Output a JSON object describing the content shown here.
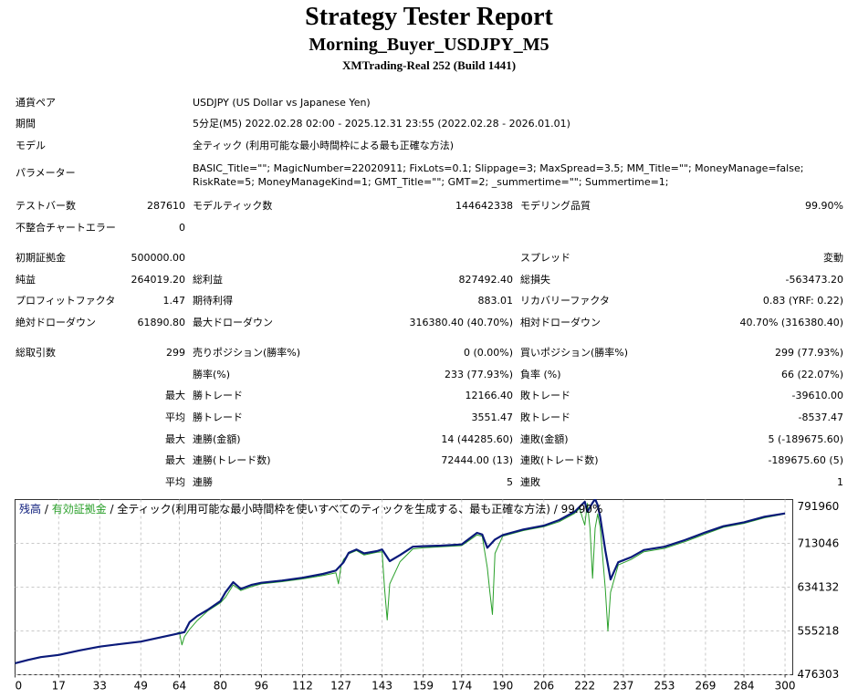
{
  "header": {
    "title": "Strategy Tester Report",
    "subtitle": "Morning_Buyer_USDJPY_M5",
    "server": "XMTrading-Real 252 (Build 1441)"
  },
  "info": {
    "symbol_label": "通貨ペア",
    "symbol_value": "USDJPY (US Dollar vs Japanese Yen)",
    "period_label": "期間",
    "period_value": "5分足(M5) 2022.02.28 02:00 - 2025.12.31 23:55 (2022.02.28 - 2026.01.01)",
    "model_label": "モデル",
    "model_value": "全ティック (利用可能な最小時間枠による最も正確な方法)",
    "params_label": "パラメーター",
    "params_value": "BASIC_Title=\"\"; MagicNumber=22020911; FixLots=0.1; Slippage=3; MaxSpread=3.5; MM_Title=\"\"; MoneyManage=false; RiskRate=5; MoneyManageKind=1; GMT_Title=\"\"; GMT=2; _summertime=\"\"; Summertime=1;"
  },
  "stats": {
    "bars_label": "テストバー数",
    "bars_value": "287610",
    "ticks_label": "モデルティック数",
    "ticks_value": "144642338",
    "quality_label": "モデリング品質",
    "quality_value": "99.90%",
    "mismatch_label": "不整合チャートエラー",
    "mismatch_value": "0",
    "deposit_label": "初期証拠金",
    "deposit_value": "500000.00",
    "spread_label": "スプレッド",
    "spread_value": "変動",
    "net_label": "純益",
    "net_value": "264019.20",
    "gross_profit_label": "総利益",
    "gross_profit_value": "827492.40",
    "gross_loss_label": "総損失",
    "gross_loss_value": "-563473.20",
    "pf_label": "プロフィットファクタ",
    "pf_value": "1.47",
    "expected_label": "期待利得",
    "expected_value": "883.01",
    "recovery_label": "リカバリーファクタ",
    "recovery_value": "0.83 (YRF: 0.22)",
    "abs_dd_label": "絶対ドローダウン",
    "abs_dd_value": "61890.80",
    "max_dd_label": "最大ドローダウン",
    "max_dd_value": "316380.40 (40.70%)",
    "rel_dd_label": "相対ドローダウン",
    "rel_dd_value": "40.70% (316380.40)",
    "trades_label": "総取引数",
    "trades_value": "299",
    "short_label": "売りポジション(勝率%)",
    "short_value": "0 (0.00%)",
    "long_label": "買いポジション(勝率%)",
    "long_value": "299 (77.93%)",
    "win_rate_label": "勝率(%)",
    "win_rate_value": "233 (77.93%)",
    "loss_rate_label": "負率 (%)",
    "loss_rate_value": "66 (22.07%)",
    "max_prefix": "最大",
    "avg_prefix": "平均",
    "largest_win_label": "勝トレード",
    "largest_win_value": "12166.40",
    "largest_loss_label": "敗トレード",
    "largest_loss_value": "-39610.00",
    "avg_win_label": "勝トレード",
    "avg_win_value": "3551.47",
    "avg_loss_label": "敗トレード",
    "avg_loss_value": "-8537.47",
    "max_cons_wins_label": "連勝(金額)",
    "max_cons_wins_value": "14 (44285.60)",
    "max_cons_losses_label": "連敗(金額)",
    "max_cons_losses_value": "5 (-189675.60)",
    "max_cons_profit_label": "連勝(トレード数)",
    "max_cons_profit_value": "72444.00 (13)",
    "max_cons_loss_label": "連敗(トレード数)",
    "max_cons_loss_value": "-189675.60 (5)",
    "avg_cons_wins_label": "連勝",
    "avg_cons_wins_value": "5",
    "avg_cons_losses_label": "連敗",
    "avg_cons_losses_value": "1"
  },
  "chart_legend": {
    "balance": "残高",
    "sep1": " / ",
    "equity": "有効証拠金",
    "sep2": " / ",
    "rest": "全ティック(利用可能な最小時間枠を使いすべてのティックを生成する、最も正確な方法) / 99.90%"
  },
  "colors": {
    "balance": "#0a1a7a",
    "equity": "#2aa02a",
    "grid": "#c8c8c8"
  },
  "chart_data": {
    "type": "line",
    "x_ticks": [
      "0",
      "17",
      "33",
      "49",
      "64",
      "80",
      "96",
      "112",
      "127",
      "143",
      "159",
      "174",
      "190",
      "206",
      "222",
      "237",
      "253",
      "269",
      "284",
      "300"
    ],
    "y_ticks": [
      "791960",
      "713046",
      "634132",
      "555218",
      "476303"
    ],
    "ylim": [
      476303,
      791960
    ],
    "xlim": [
      0,
      303
    ],
    "grid": true,
    "series": [
      {
        "name": "残高",
        "x": [
          0,
          5,
          10,
          17,
          25,
          33,
          40,
          49,
          56,
          62,
          66,
          68,
          71,
          75,
          80,
          82,
          85,
          88,
          92,
          96,
          104,
          112,
          120,
          125,
          128,
          130,
          133,
          136,
          141,
          143,
          146,
          150,
          155,
          159,
          166,
          174,
          180,
          182,
          184,
          187,
          190,
          198,
          206,
          212,
          218,
          220,
          222,
          223,
          225,
          226,
          227,
          228,
          230,
          232,
          235,
          240,
          245,
          253,
          261,
          269,
          276,
          284,
          292,
          300
        ],
        "y": [
          497000,
          503000,
          508000,
          512000,
          520000,
          527000,
          531000,
          536000,
          543000,
          549000,
          553000,
          571000,
          582000,
          593000,
          609000,
          625000,
          643000,
          631000,
          638000,
          642000,
          646000,
          651000,
          658000,
          664000,
          679000,
          696000,
          702000,
          695000,
          699000,
          702000,
          681000,
          692000,
          707000,
          708000,
          709000,
          711000,
          732000,
          729000,
          705000,
          720000,
          728000,
          738000,
          745000,
          755000,
          770000,
          779000,
          788000,
          770000,
          786000,
          793000,
          782000,
          760000,
          700000,
          648000,
          679000,
          688000,
          701000,
          707000,
          719000,
          733000,
          744000,
          751000,
          761000,
          767000
        ]
      },
      {
        "name": "有効証拠金",
        "x": [
          0,
          5,
          10,
          17,
          25,
          33,
          40,
          49,
          56,
          62,
          64,
          65,
          66,
          68,
          71,
          75,
          80,
          82,
          85,
          88,
          92,
          96,
          104,
          112,
          120,
          125,
          126,
          127,
          128,
          130,
          133,
          136,
          141,
          143,
          144,
          145,
          146,
          150,
          155,
          159,
          166,
          174,
          180,
          182,
          184,
          185,
          186,
          187,
          190,
          198,
          206,
          212,
          218,
          220,
          221,
          222,
          223,
          224,
          225,
          226,
          227,
          228,
          229,
          230,
          231,
          232,
          235,
          240,
          245,
          253,
          261,
          269,
          276,
          284,
          292,
          300
        ],
        "y": [
          497000,
          503000,
          508000,
          512000,
          520000,
          527000,
          531000,
          536000,
          543000,
          549000,
          553000,
          530000,
          545000,
          558000,
          574000,
          591000,
          606000,
          616000,
          638000,
          628000,
          635000,
          640000,
          644000,
          649000,
          655000,
          660000,
          640000,
          672000,
          684000,
          694000,
          700000,
          692000,
          697000,
          698000,
          630000,
          575000,
          640000,
          680000,
          703000,
          705000,
          707000,
          709000,
          728000,
          726000,
          669000,
          625000,
          585000,
          695000,
          726000,
          736000,
          743000,
          752000,
          767000,
          776000,
          760000,
          746000,
          785000,
          740000,
          650000,
          740000,
          766000,
          742000,
          686000,
          630000,
          555000,
          625000,
          674000,
          684000,
          698000,
          704000,
          716000,
          730000,
          742000,
          749000,
          759000,
          766000
        ]
      }
    ]
  }
}
